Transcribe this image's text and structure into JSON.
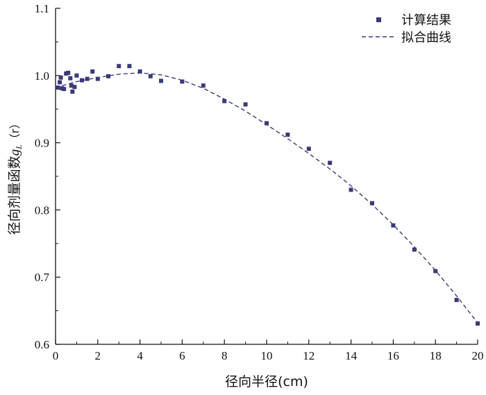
{
  "chart_data": {
    "type": "scatter",
    "xlabel": "径向半径(cm)",
    "ylabel": "径向剂量函数g_L (r)",
    "ylabel_main": "径向剂量函数",
    "ylabel_g": "g",
    "ylabel_sub": "L",
    "ylabel_r": "（r）",
    "xlim": [
      0,
      20
    ],
    "ylim": [
      0.6,
      1.1
    ],
    "xticks": [
      "0",
      "2",
      "4",
      "6",
      "8",
      "10",
      "12",
      "14",
      "16",
      "18",
      "20"
    ],
    "yticks": [
      "0.6",
      "0.7",
      "0.8",
      "0.9",
      "1.0",
      "1.1"
    ],
    "grid": false,
    "legend_position": "top-right",
    "series": [
      {
        "name": "计算结果",
        "kind": "markers",
        "marker": "square",
        "color": "#3a3a78",
        "x": [
          0.1,
          0.2,
          0.25,
          0.3,
          0.4,
          0.5,
          0.6,
          0.7,
          0.75,
          0.8,
          0.9,
          1.0,
          1.25,
          1.5,
          1.75,
          2.0,
          2.5,
          3.0,
          3.5,
          4.0,
          4.5,
          5.0,
          6.0,
          7.0,
          8.0,
          9.0,
          10.0,
          11.0,
          12.0,
          13.0,
          14.0,
          15.0,
          16.0,
          17.0,
          18.0,
          19.0,
          20.0
        ],
        "y": [
          0.982,
          0.99,
          0.997,
          0.981,
          0.98,
          1.003,
          1.004,
          0.996,
          0.985,
          0.976,
          0.983,
          1.0,
          0.993,
          0.995,
          1.006,
          0.995,
          0.999,
          1.014,
          1.014,
          1.006,
          0.999,
          0.992,
          0.991,
          0.985,
          0.962,
          0.957,
          0.929,
          0.912,
          0.891,
          0.87,
          0.83,
          0.81,
          0.777,
          0.741,
          0.709,
          0.666,
          0.631
        ]
      },
      {
        "name": "拟合曲线",
        "kind": "line",
        "dash": true,
        "color": "#3a3a78",
        "x": [
          0,
          1,
          2,
          3,
          4,
          5,
          6,
          7,
          8,
          9,
          10,
          11,
          12,
          13,
          14,
          15,
          16,
          17,
          18,
          19,
          20
        ],
        "y": [
          0.982,
          0.991,
          0.997,
          1.002,
          1.004,
          1.001,
          0.993,
          0.981,
          0.965,
          0.947,
          0.927,
          0.906,
          0.884,
          0.861,
          0.836,
          0.808,
          0.778,
          0.745,
          0.71,
          0.672,
          0.632
        ]
      }
    ]
  }
}
